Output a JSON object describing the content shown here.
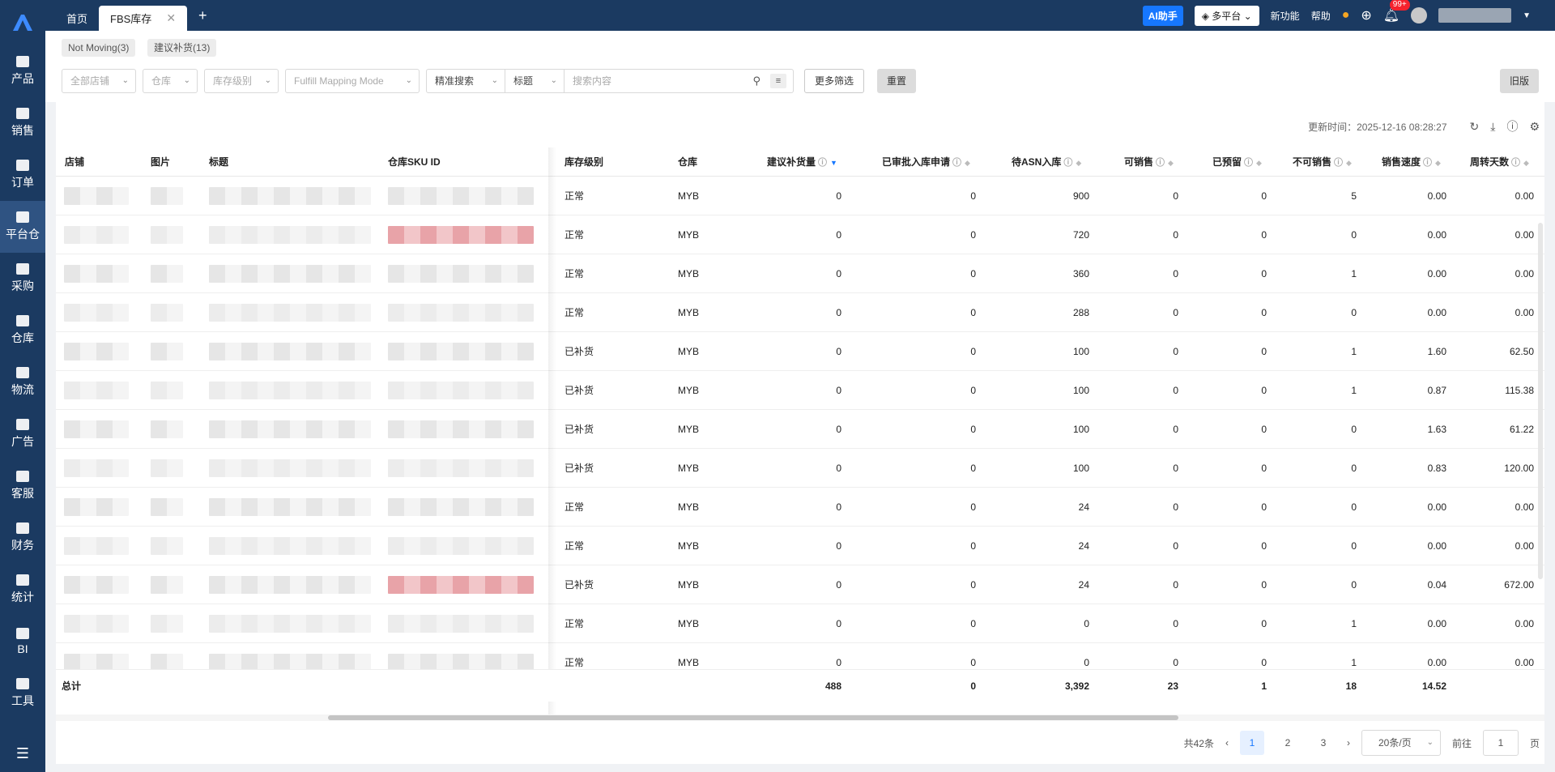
{
  "sidebar": {
    "items": [
      {
        "label": "产品",
        "icon": "box-icon"
      },
      {
        "label": "销售",
        "icon": "shop-icon"
      },
      {
        "label": "订单",
        "icon": "order-icon"
      },
      {
        "label": "平台仓",
        "icon": "warehouse-icon",
        "active": true
      },
      {
        "label": "采购",
        "icon": "cart-icon"
      },
      {
        "label": "仓库",
        "icon": "storage-icon"
      },
      {
        "label": "物流",
        "icon": "truck-icon"
      },
      {
        "label": "广告",
        "icon": "ad-icon"
      },
      {
        "label": "客服",
        "icon": "mail-icon"
      },
      {
        "label": "财务",
        "icon": "finance-icon"
      },
      {
        "label": "统计",
        "icon": "pie-icon"
      },
      {
        "label": "BI",
        "icon": "bi-icon"
      },
      {
        "label": "工具",
        "icon": "tool-icon"
      }
    ]
  },
  "tabs": [
    {
      "label": "首页"
    },
    {
      "label": "FBS库存",
      "active": true
    }
  ],
  "topbar": {
    "ai": "AI助手",
    "platform": "多平台",
    "new_feature": "新功能",
    "help": "帮助",
    "notify_count": "99+"
  },
  "quick_tags": [
    "Not Moving(3)",
    "建议补货(13)"
  ],
  "filters": {
    "store": "全部店铺",
    "warehouse": "仓库",
    "level": "库存级别",
    "mapping": "Fulfill Mapping Mode",
    "search_mode": "精准搜索",
    "field": "标题",
    "search_placeholder": "搜索内容",
    "more": "更多筛选",
    "reset": "重置",
    "old": "旧版"
  },
  "update_time": "更新时间：2025-12-16 08:28:27",
  "columns": {
    "store": "店铺",
    "image": "图片",
    "title": "标题",
    "sku": "仓库SKU ID",
    "level": "库存级别",
    "wh": "仓库",
    "suggest": "建议补货量",
    "approved": "已审批入库申请",
    "asn": "待ASN入库",
    "sellable": "可销售",
    "reserved": "已预留",
    "unsellable": "不可销售",
    "speed": "销售速度",
    "turnover": "周转天数"
  },
  "rows": [
    {
      "level": "正常",
      "wh": "MYB",
      "suggest": "0",
      "approved": "0",
      "asn": "900",
      "sellable": "0",
      "reserved": "0",
      "unsellable": "5",
      "speed": "0.00",
      "turnover": "0.00"
    },
    {
      "level": "正常",
      "wh": "MYB",
      "suggest": "0",
      "approved": "0",
      "asn": "720",
      "sellable": "0",
      "reserved": "0",
      "unsellable": "0",
      "speed": "0.00",
      "turnover": "0.00"
    },
    {
      "level": "正常",
      "wh": "MYB",
      "suggest": "0",
      "approved": "0",
      "asn": "360",
      "sellable": "0",
      "reserved": "0",
      "unsellable": "1",
      "speed": "0.00",
      "turnover": "0.00"
    },
    {
      "level": "正常",
      "wh": "MYB",
      "suggest": "0",
      "approved": "0",
      "asn": "288",
      "sellable": "0",
      "reserved": "0",
      "unsellable": "0",
      "speed": "0.00",
      "turnover": "0.00"
    },
    {
      "level": "已补货",
      "wh": "MYB",
      "suggest": "0",
      "approved": "0",
      "asn": "100",
      "sellable": "0",
      "reserved": "0",
      "unsellable": "1",
      "speed": "1.60",
      "turnover": "62.50"
    },
    {
      "level": "已补货",
      "wh": "MYB",
      "suggest": "0",
      "approved": "0",
      "asn": "100",
      "sellable": "0",
      "reserved": "0",
      "unsellable": "1",
      "speed": "0.87",
      "turnover": "115.38"
    },
    {
      "level": "已补货",
      "wh": "MYB",
      "suggest": "0",
      "approved": "0",
      "asn": "100",
      "sellable": "0",
      "reserved": "0",
      "unsellable": "0",
      "speed": "1.63",
      "turnover": "61.22"
    },
    {
      "level": "已补货",
      "wh": "MYB",
      "suggest": "0",
      "approved": "0",
      "asn": "100",
      "sellable": "0",
      "reserved": "0",
      "unsellable": "0",
      "speed": "0.83",
      "turnover": "120.00"
    },
    {
      "level": "正常",
      "wh": "MYB",
      "suggest": "0",
      "approved": "0",
      "asn": "24",
      "sellable": "0",
      "reserved": "0",
      "unsellable": "0",
      "speed": "0.00",
      "turnover": "0.00"
    },
    {
      "level": "正常",
      "wh": "MYB",
      "suggest": "0",
      "approved": "0",
      "asn": "24",
      "sellable": "0",
      "reserved": "0",
      "unsellable": "0",
      "speed": "0.00",
      "turnover": "0.00"
    },
    {
      "level": "已补货",
      "wh": "MYB",
      "suggest": "0",
      "approved": "0",
      "asn": "24",
      "sellable": "0",
      "reserved": "0",
      "unsellable": "0",
      "speed": "0.04",
      "turnover": "672.00"
    },
    {
      "level": "正常",
      "wh": "MYB",
      "suggest": "0",
      "approved": "0",
      "asn": "0",
      "sellable": "0",
      "reserved": "0",
      "unsellable": "1",
      "speed": "0.00",
      "turnover": "0.00"
    },
    {
      "level": "正常",
      "wh": "MYB",
      "suggest": "0",
      "approved": "0",
      "asn": "0",
      "sellable": "0",
      "reserved": "0",
      "unsellable": "1",
      "speed": "0.00",
      "turnover": "0.00"
    }
  ],
  "totals": {
    "label": "总计",
    "suggest": "488",
    "approved": "0",
    "asn": "3,392",
    "sellable": "23",
    "reserved": "1",
    "unsellable": "18",
    "speed": "14.52"
  },
  "pager": {
    "total": "共42条",
    "pages": [
      "1",
      "2",
      "3"
    ],
    "current": "1",
    "size": "20条/页",
    "goto": "前往",
    "goto_value": "1",
    "page_unit": "页"
  },
  "colors": {
    "nav": "#1b3a61",
    "accent": "#1677ff"
  }
}
